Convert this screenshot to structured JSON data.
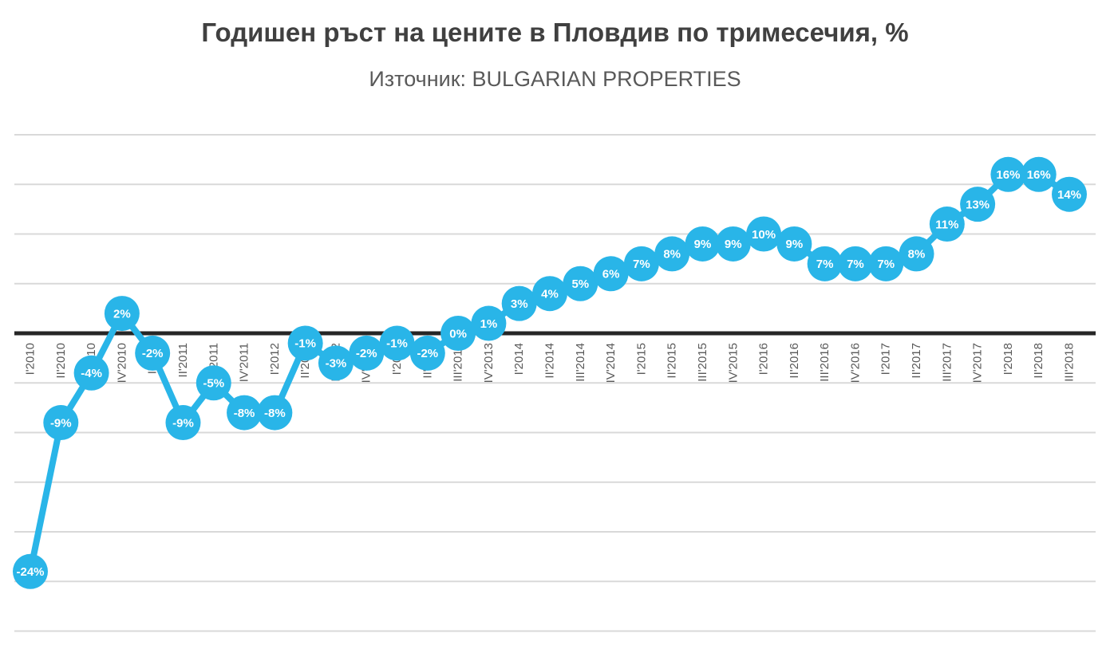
{
  "chart_data": {
    "type": "line",
    "title": "Годишен ръст на цените в Пловдив по тримесечия, %",
    "subtitle": "Източник: BULGARIAN PROPERTIES",
    "unit": "%",
    "categories": [
      "I'2010",
      "II'2010",
      "III'2010",
      "IV'2010",
      "I'2011",
      "II'2011",
      "III'2011",
      "IV'2011",
      "I'2012",
      "II'2012",
      "III'2012",
      "IV'2012",
      "I'2013",
      "II'2013",
      "III'2013",
      "IV'2013",
      "I'2014",
      "II'2014",
      "III'2014",
      "IV'2014",
      "I'2015",
      "II'2015",
      "III'2015",
      "IV'2015",
      "I'2016",
      "II'2016",
      "III'2016",
      "IV'2016",
      "I'2017",
      "II'2017",
      "III'2017",
      "IV'2017",
      "I'2018",
      "II'2018",
      "III'2018"
    ],
    "values": [
      -24,
      -9,
      -4,
      2,
      -2,
      -9,
      -5,
      -8,
      -8,
      -1,
      -3,
      -2,
      -1,
      -2,
      0,
      1,
      3,
      4,
      5,
      6,
      7,
      8,
      9,
      9,
      10,
      9,
      7,
      7,
      7,
      8,
      11,
      13,
      16,
      16,
      14
    ],
    "ylim": [
      -30,
      20
    ],
    "gridline_step": 5,
    "grid": true,
    "legend": "none",
    "y_axis_labels_visible": false,
    "x_label_rotation": -90,
    "style": {
      "series_color": "#29B5E8",
      "data_label_color": "#FFFFFF",
      "gridline_color": "#D9D9D9",
      "axis_line_color": "#262626",
      "category_label_color": "#595959",
      "title_color": "#404040",
      "subtitle_color": "#595959",
      "background": "#FFFFFF"
    }
  }
}
